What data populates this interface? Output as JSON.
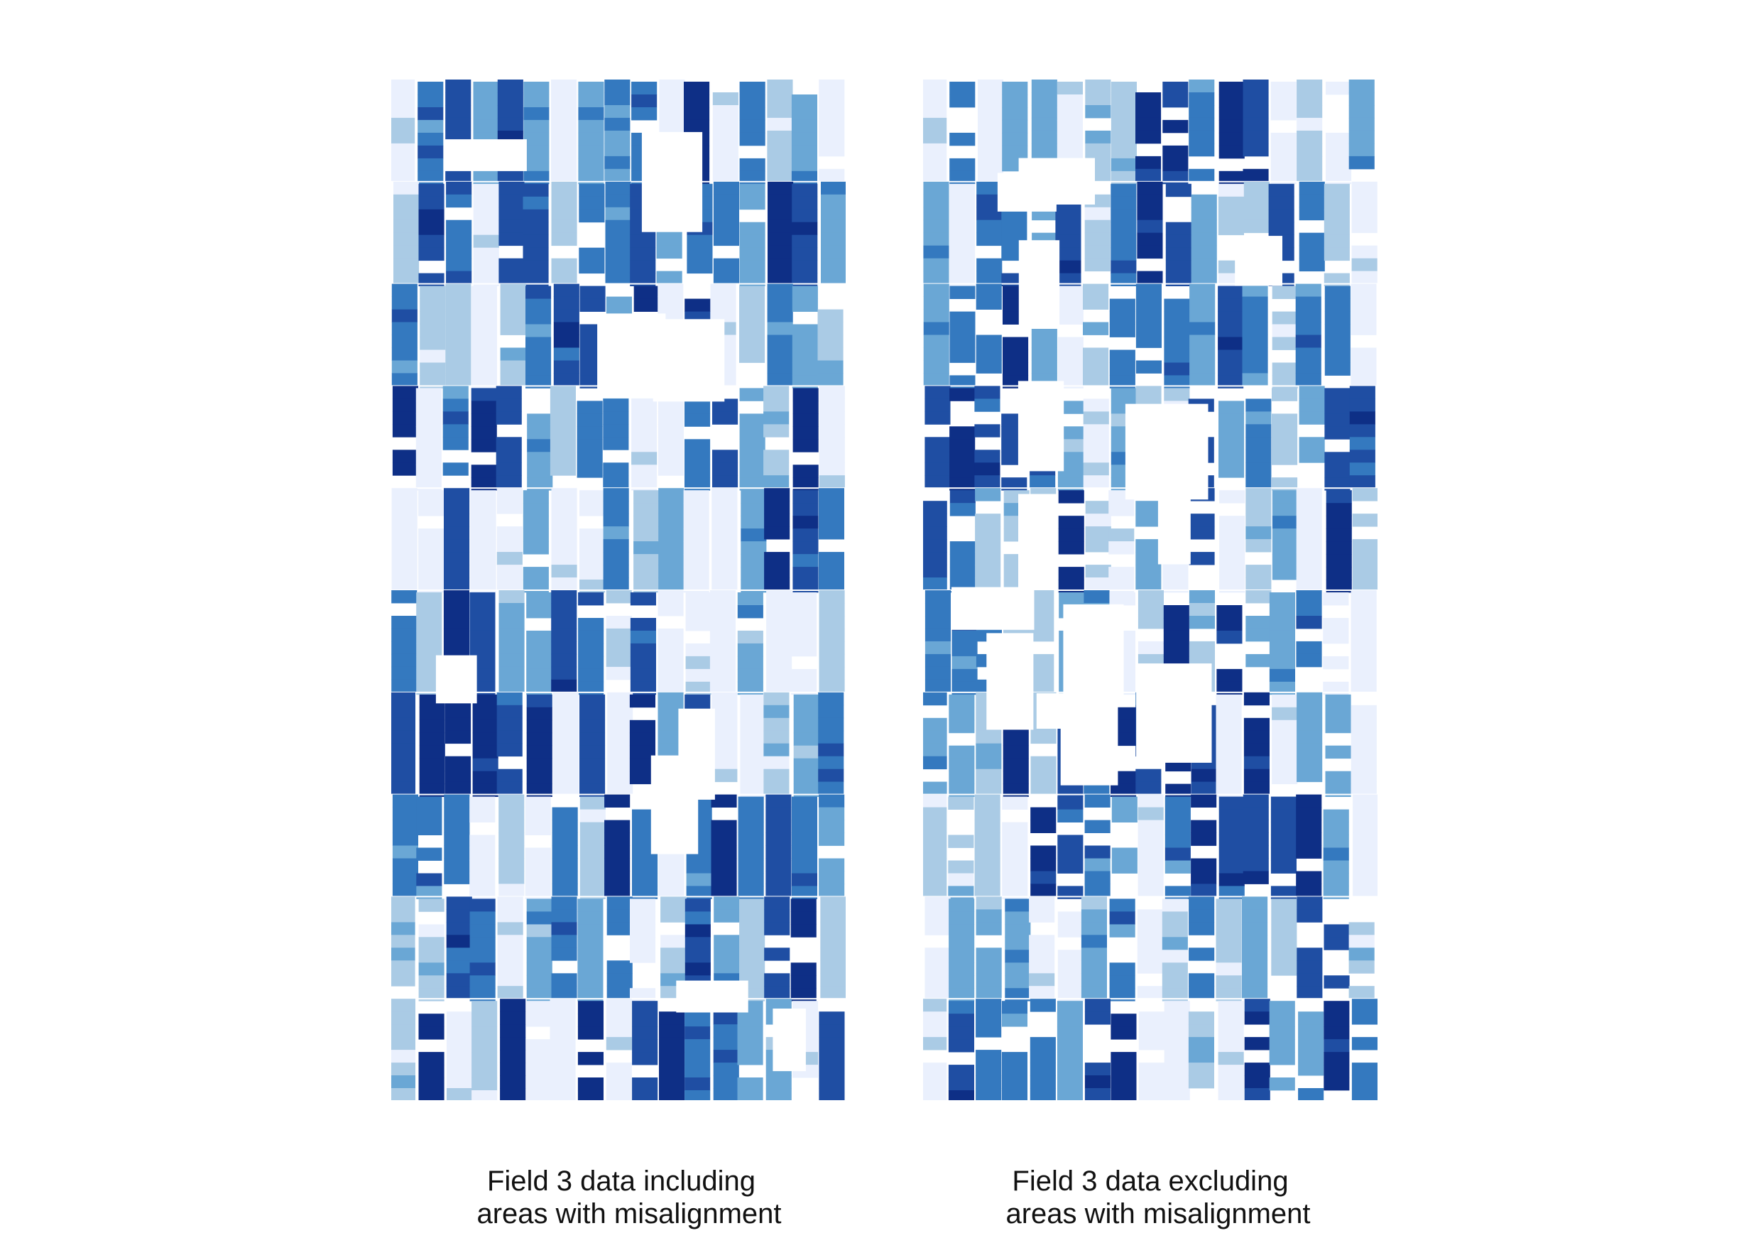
{
  "panels": [
    {
      "caption_line1": "Field 3 data including",
      "caption_line2": "areas with misalignment",
      "excluding_misaligned": false
    },
    {
      "caption_line1": "Field 3 data excluding",
      "caption_line2": "areas with misalignment",
      "excluding_misaligned": true
    }
  ],
  "palette": {
    "levels": [
      "#eaf0fd",
      "#aacbe5",
      "#6aa7d5",
      "#3479bf",
      "#1f4ea3",
      "#0e2f86"
    ],
    "background": "#ffffff"
  },
  "grid": {
    "rows": 10,
    "columns": 17,
    "sub_rows_per_block": 8
  }
}
